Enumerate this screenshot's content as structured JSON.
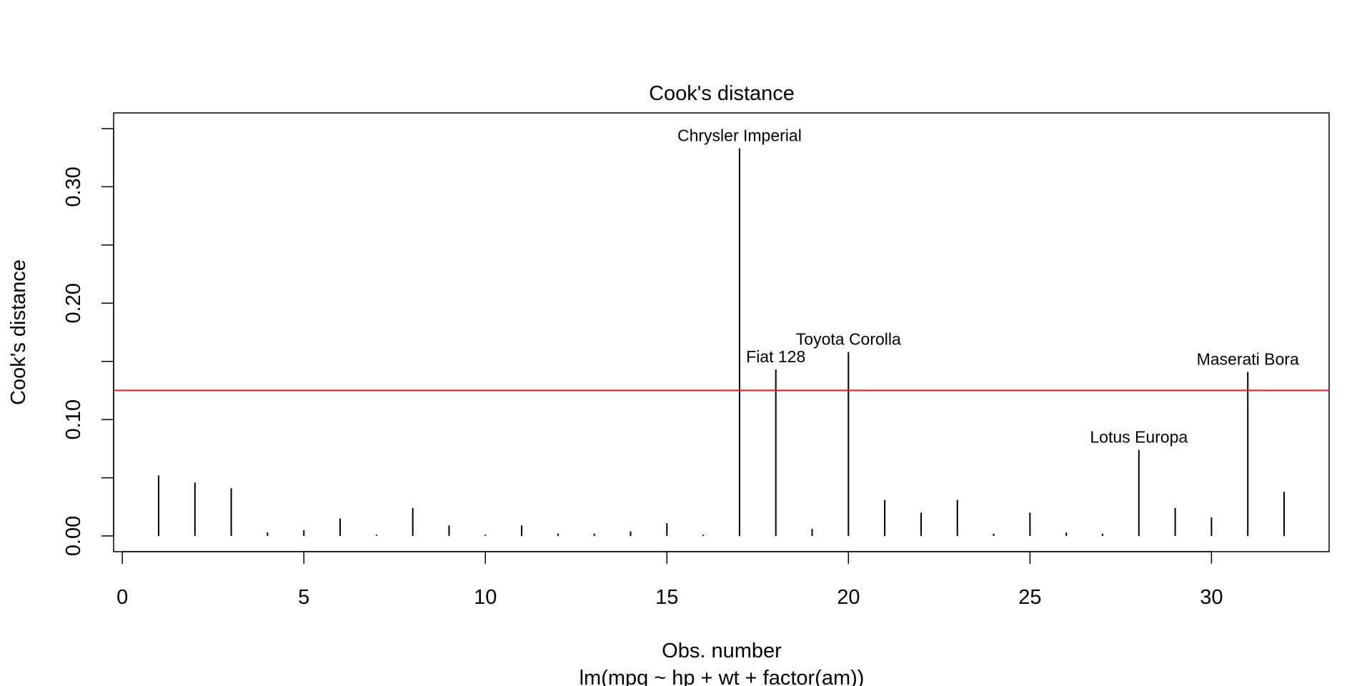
{
  "chart_data": {
    "type": "bar",
    "title": "Cook's distance",
    "xlabel": "Obs. number",
    "ylabel": "Cook's distance",
    "subtitle": "lm(mpg ~ hp + wt + factor(am))",
    "xlim": [
      -0.24,
      33.24
    ],
    "ylim": [
      -0.0135,
      0.3635
    ],
    "x_ticks": [
      0,
      5,
      10,
      15,
      20,
      25,
      30
    ],
    "y_ticks": [
      0.0,
      0.05,
      0.1,
      0.15,
      0.2,
      0.25,
      0.3,
      0.35
    ],
    "y_tick_labels": [
      "0.00",
      "",
      "0.10",
      "",
      "0.20",
      "",
      "0.30",
      ""
    ],
    "x": [
      1,
      2,
      3,
      4,
      5,
      6,
      7,
      8,
      9,
      10,
      11,
      12,
      13,
      14,
      15,
      16,
      17,
      18,
      19,
      20,
      21,
      22,
      23,
      24,
      25,
      26,
      27,
      28,
      29,
      30,
      31,
      32
    ],
    "values": [
      0.052,
      0.046,
      0.041,
      0.003,
      0.005,
      0.015,
      0.001,
      0.024,
      0.009,
      0.001,
      0.009,
      0.002,
      0.002,
      0.004,
      0.011,
      0.001,
      0.333,
      0.143,
      0.006,
      0.158,
      0.031,
      0.02,
      0.031,
      0.002,
      0.02,
      0.003,
      0.002,
      0.074,
      0.024,
      0.016,
      0.141,
      0.038
    ],
    "annotations": [
      {
        "x": 17,
        "label": "Chrysler Imperial"
      },
      {
        "x": 18,
        "label": "Fiat 128"
      },
      {
        "x": 20,
        "label": "Toyota Corolla"
      },
      {
        "x": 28,
        "label": "Lotus Europa"
      },
      {
        "x": 31,
        "label": "Maserati Bora"
      }
    ],
    "reference_line": {
      "y": 0.125,
      "color": "#e31a1c"
    },
    "colors": {
      "bars": "#000000",
      "reference_line": "#e31a1c"
    },
    "grid": false
  }
}
